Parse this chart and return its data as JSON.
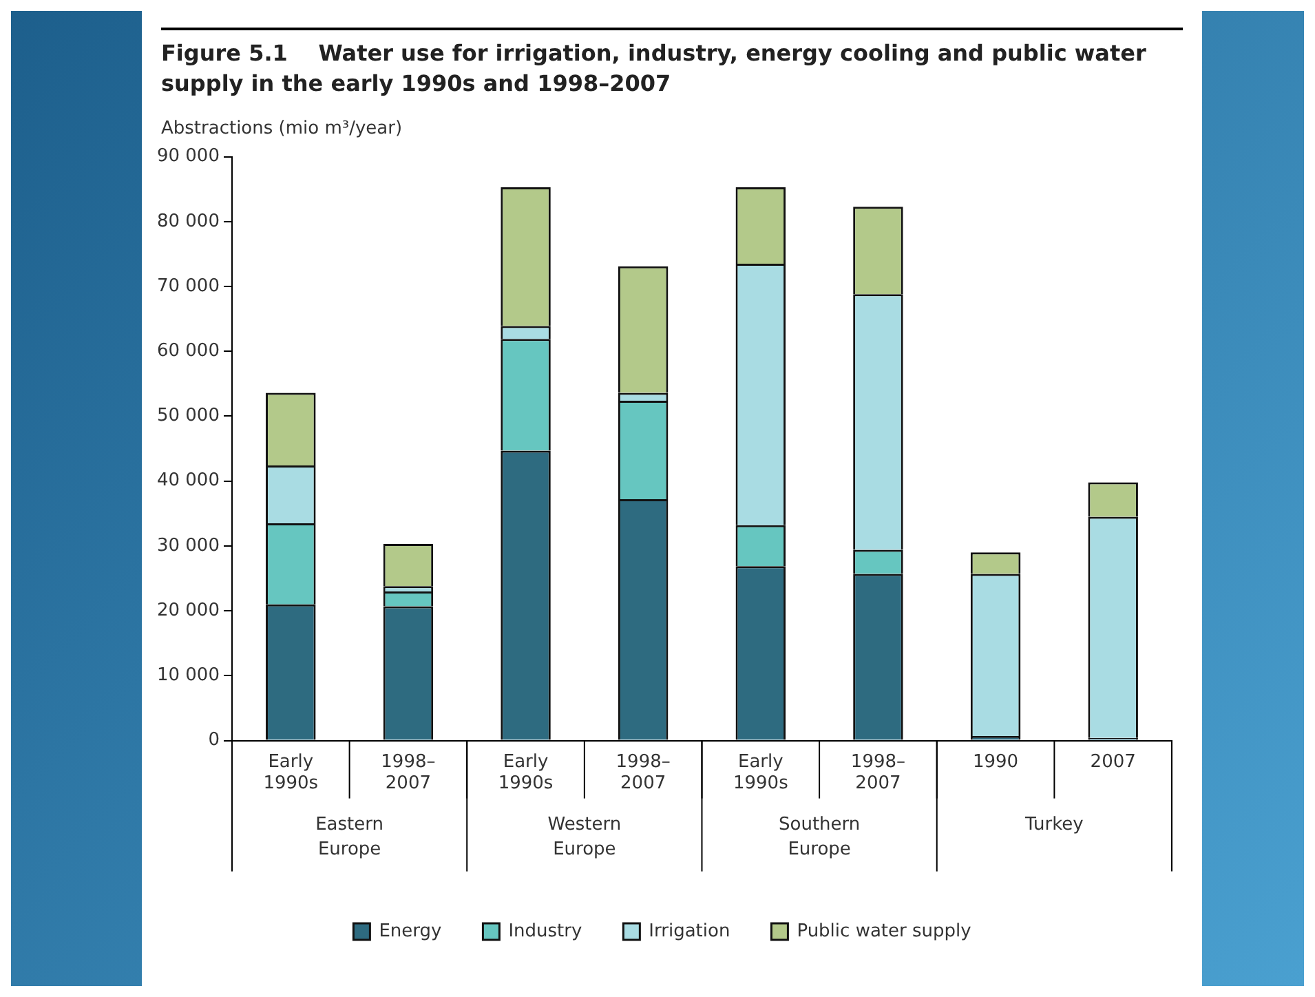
{
  "chart_data": {
    "type": "bar",
    "title": "Figure 5.1    Water use for irrigation, industry, energy cooling and public water supply in the early 1990s and 1998–2007",
    "ylabel": "Abstractions (mio m³/year)",
    "categories": [
      "Early 1990s",
      "1998–2007",
      "Early 1990s",
      "1998–2007",
      "Early 1990s",
      "1998–2007",
      "1990",
      "2007"
    ],
    "annotations": [
      "Eastern Europe",
      "Western Europe",
      "Southern Europe",
      "Turkey"
    ],
    "stacked": true,
    "series": [
      {
        "name": "Energy",
        "color": "#2e6b80",
        "values": [
          21000,
          20700,
          44700,
          37200,
          26900,
          25700,
          700,
          400
        ]
      },
      {
        "name": "Industry",
        "color": "#66c6c0",
        "values": [
          12500,
          2300,
          17200,
          15200,
          6300,
          3700,
          0,
          0
        ]
      },
      {
        "name": "Irrigation",
        "color": "#a9dce3",
        "values": [
          8900,
          800,
          2000,
          1200,
          40300,
          39400,
          25000,
          34100
        ]
      },
      {
        "name": "Public water supply",
        "color": "#b3c98a",
        "values": [
          11200,
          6500,
          21400,
          19500,
          11800,
          13500,
          3300,
          5300
        ]
      }
    ],
    "ylim": [
      0,
      90000
    ],
    "yticks": [
      0,
      {
        "value": 10000,
        "label": "10 000"
      },
      {
        "value": 20000,
        "label": "20 000"
      },
      {
        "value": 30000,
        "label": "30 000"
      },
      {
        "value": 40000,
        "label": "40 000"
      },
      {
        "value": 50000,
        "label": "50 000"
      },
      {
        "value": 60000,
        "label": "60 000"
      },
      {
        "value": 70000,
        "label": "70 000"
      },
      {
        "value": 80000,
        "label": "80 000"
      },
      {
        "value": 90000,
        "label": "90 000"
      }
    ],
    "grid": false,
    "legend": "bottom"
  }
}
